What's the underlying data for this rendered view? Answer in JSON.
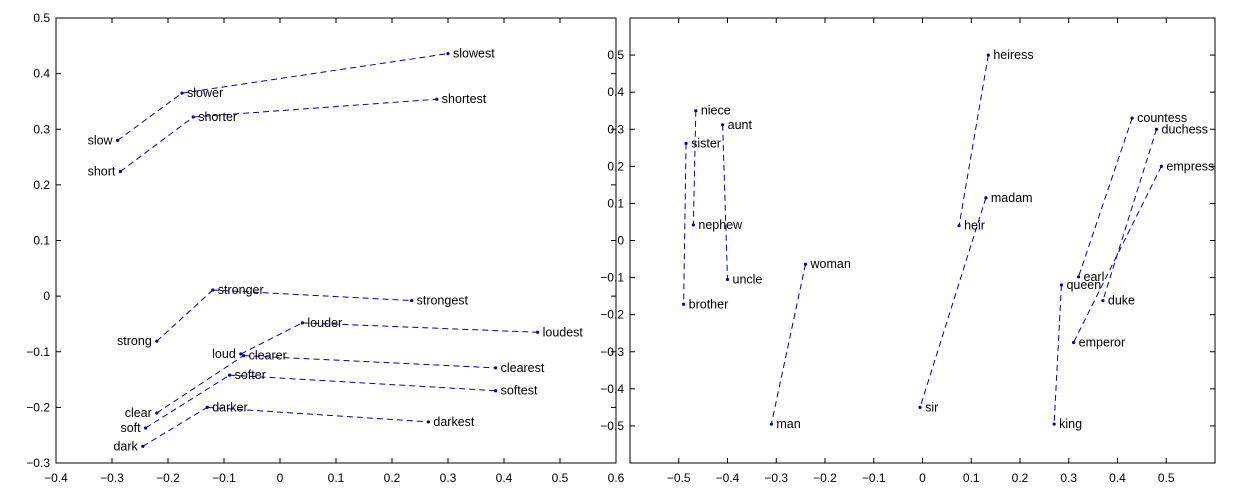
{
  "chart_data": [
    {
      "type": "scatter",
      "title": "",
      "xlabel": "",
      "ylabel": "",
      "xlim": [
        -0.4,
        0.6
      ],
      "ylim": [
        -0.3,
        0.5
      ],
      "x_ticks": [
        -0.4,
        -0.3,
        -0.2,
        -0.1,
        0,
        0.1,
        0.2,
        0.3,
        0.4,
        0.5,
        0.6
      ],
      "x_tick_labels": [
        "−0.4",
        "−0.3",
        "−0.2",
        "−0.1",
        "0",
        "0.1",
        "0.2",
        "0.3",
        "0.4",
        "0.5",
        "0.6"
      ],
      "y_ticks": [
        -0.3,
        -0.2,
        -0.1,
        0,
        0.1,
        0.2,
        0.3,
        0.4,
        0.5
      ],
      "y_tick_labels": [
        "−0.3",
        "−0.2",
        "−0.1",
        "0",
        "0.1",
        "0.2",
        "0.3",
        "0.4",
        "0.5"
      ],
      "grid": false,
      "line_color": "#0000b4",
      "points": [
        {
          "label": "slow",
          "x": -0.29,
          "y": 0.28,
          "anchor": "end"
        },
        {
          "label": "slower",
          "x": -0.175,
          "y": 0.365,
          "anchor": "start"
        },
        {
          "label": "slowest",
          "x": 0.3,
          "y": 0.436,
          "anchor": "start"
        },
        {
          "label": "short",
          "x": -0.285,
          "y": 0.224,
          "anchor": "end"
        },
        {
          "label": "shorter",
          "x": -0.155,
          "y": 0.322,
          "anchor": "start"
        },
        {
          "label": "shortest",
          "x": 0.28,
          "y": 0.354,
          "anchor": "start"
        },
        {
          "label": "strong",
          "x": -0.22,
          "y": -0.081,
          "anchor": "end"
        },
        {
          "label": "stronger",
          "x": -0.12,
          "y": 0.011,
          "anchor": "start"
        },
        {
          "label": "strongest",
          "x": 0.235,
          "y": -0.008,
          "anchor": "start"
        },
        {
          "label": "loud",
          "x": -0.07,
          "y": -0.104,
          "anchor": "end"
        },
        {
          "label": "louder",
          "x": 0.04,
          "y": -0.048,
          "anchor": "start"
        },
        {
          "label": "loudest",
          "x": 0.46,
          "y": -0.065,
          "anchor": "start"
        },
        {
          "label": "clear",
          "x": -0.22,
          "y": -0.21,
          "anchor": "end"
        },
        {
          "label": "clearer",
          "x": -0.065,
          "y": -0.107,
          "anchor": "start"
        },
        {
          "label": "clearest",
          "x": 0.385,
          "y": -0.129,
          "anchor": "start"
        },
        {
          "label": "soft",
          "x": -0.24,
          "y": -0.237,
          "anchor": "end"
        },
        {
          "label": "softer",
          "x": -0.09,
          "y": -0.142,
          "anchor": "start"
        },
        {
          "label": "softest",
          "x": 0.385,
          "y": -0.17,
          "anchor": "start"
        },
        {
          "label": "dark",
          "x": -0.245,
          "y": -0.27,
          "anchor": "end"
        },
        {
          "label": "darker",
          "x": -0.13,
          "y": -0.2,
          "anchor": "start"
        },
        {
          "label": "darkest",
          "x": 0.265,
          "y": -0.226,
          "anchor": "start"
        }
      ],
      "segments": [
        [
          "slow",
          "slower"
        ],
        [
          "slower",
          "slowest"
        ],
        [
          "short",
          "shorter"
        ],
        [
          "shorter",
          "shortest"
        ],
        [
          "strong",
          "stronger"
        ],
        [
          "stronger",
          "strongest"
        ],
        [
          "loud",
          "louder"
        ],
        [
          "louder",
          "loudest"
        ],
        [
          "clear",
          "clearer"
        ],
        [
          "clearer",
          "clearest"
        ],
        [
          "soft",
          "softer"
        ],
        [
          "softer",
          "softest"
        ],
        [
          "dark",
          "darker"
        ],
        [
          "darker",
          "darkest"
        ]
      ]
    },
    {
      "type": "scatter",
      "title": "",
      "xlabel": "",
      "ylabel": "",
      "xlim": [
        -0.6,
        0.6
      ],
      "ylim": [
        -0.6,
        0.6
      ],
      "x_ticks": [
        -0.5,
        -0.4,
        -0.3,
        -0.2,
        -0.1,
        0,
        0.1,
        0.2,
        0.3,
        0.4,
        0.5
      ],
      "x_tick_labels": [
        "−0.5",
        "−0.4",
        "−0.3",
        "−0.2",
        "−0.1",
        "0",
        "0.1",
        "0.2",
        "0.3",
        "0.4",
        "0.5"
      ],
      "y_ticks": [
        -0.5,
        -0.4,
        -0.3,
        -0.2,
        -0.1,
        0,
        0.1,
        0.2,
        0.3,
        0.4,
        0.5
      ],
      "y_tick_labels": [
        "−0.5",
        "−0.4",
        "−0.3",
        "−0.2",
        "−0.1",
        "0",
        "0.1",
        "0.2",
        "0.3",
        "0.4",
        "0.5"
      ],
      "grid": false,
      "line_color": "#0000b4",
      "points": [
        {
          "label": "niece",
          "x": -0.465,
          "y": 0.35,
          "anchor": "start"
        },
        {
          "label": "aunt",
          "x": -0.41,
          "y": 0.312,
          "anchor": "start"
        },
        {
          "label": "sister",
          "x": -0.485,
          "y": 0.262,
          "anchor": "start"
        },
        {
          "label": "nephew",
          "x": -0.47,
          "y": 0.042,
          "anchor": "start"
        },
        {
          "label": "uncle",
          "x": -0.4,
          "y": -0.105,
          "anchor": "start"
        },
        {
          "label": "brother",
          "x": -0.49,
          "y": -0.172,
          "anchor": "start"
        },
        {
          "label": "woman",
          "x": -0.24,
          "y": -0.064,
          "anchor": "start"
        },
        {
          "label": "man",
          "x": -0.31,
          "y": -0.495,
          "anchor": "start"
        },
        {
          "label": "heiress",
          "x": 0.135,
          "y": 0.5,
          "anchor": "start"
        },
        {
          "label": "madam",
          "x": 0.13,
          "y": 0.115,
          "anchor": "start"
        },
        {
          "label": "heir",
          "x": 0.075,
          "y": 0.04,
          "anchor": "start"
        },
        {
          "label": "sir",
          "x": -0.005,
          "y": -0.45,
          "anchor": "start"
        },
        {
          "label": "countess",
          "x": 0.43,
          "y": 0.33,
          "anchor": "start"
        },
        {
          "label": "duchess",
          "x": 0.48,
          "y": 0.3,
          "anchor": "start"
        },
        {
          "label": "empress",
          "x": 0.49,
          "y": 0.2,
          "anchor": "start"
        },
        {
          "label": "earl",
          "x": 0.32,
          "y": -0.098,
          "anchor": "start"
        },
        {
          "label": "queen",
          "x": 0.285,
          "y": -0.12,
          "anchor": "start"
        },
        {
          "label": "duke",
          "x": 0.37,
          "y": -0.162,
          "anchor": "start"
        },
        {
          "label": "emperor",
          "x": 0.31,
          "y": -0.275,
          "anchor": "start"
        },
        {
          "label": "king",
          "x": 0.27,
          "y": -0.495,
          "anchor": "start"
        }
      ],
      "segments": [
        [
          "niece",
          "nephew"
        ],
        [
          "aunt",
          "uncle"
        ],
        [
          "sister",
          "brother"
        ],
        [
          "woman",
          "man"
        ],
        [
          "heiress",
          "heir"
        ],
        [
          "madam",
          "sir"
        ],
        [
          "countess",
          "earl"
        ],
        [
          "duchess",
          "duke"
        ],
        [
          "empress",
          "emperor"
        ],
        [
          "queen",
          "king"
        ]
      ]
    }
  ]
}
